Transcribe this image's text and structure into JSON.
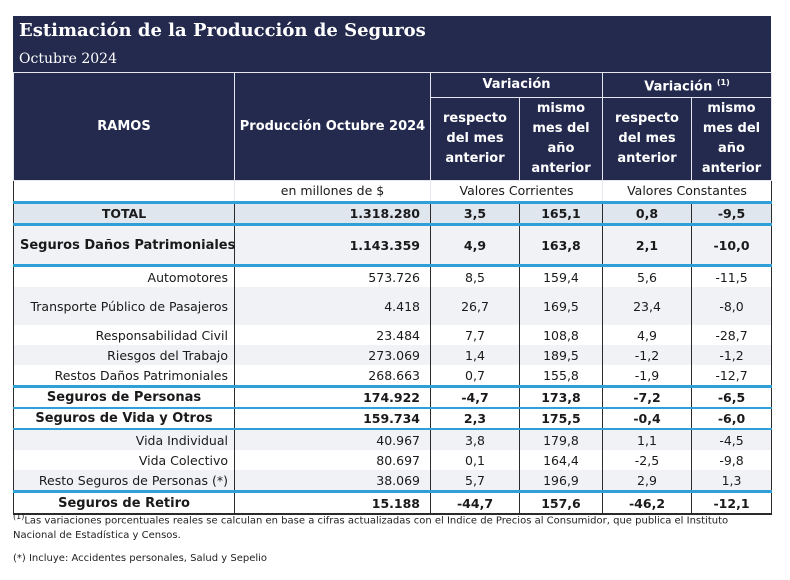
{
  "title": "Estimación de la Producción de Seguros",
  "subtitle": "Octubre 2024",
  "header": {
    "ramos": "RAMOS",
    "produccion": "Producción Octubre 2024",
    "variacion1": "Variación",
    "variacion2": "Variación",
    "variacion2_sup": "(1)",
    "resp_mes_1": "respecto del mes anterior",
    "mismo_mes_1": "mismo mes del año anterior",
    "resp_mes_2": "respecto del mes anterior",
    "mismo_mes_2": "mismo mes del año anterior",
    "unidad": "en millones de $",
    "valores_corrientes": "Valores Corrientes",
    "valores_constantes": "Valores Constantes"
  },
  "rows": [
    {
      "ramo": "TOTAL",
      "prod": "1.318.280",
      "vc_mes": "3,5",
      "vc_anio": "165,1",
      "vk_mes": "0,8",
      "vk_anio": "-9,5"
    },
    {
      "ramo": "Seguros Daños Patrimoniales",
      "prod": "1.143.359",
      "vc_mes": "4,9",
      "vc_anio": "163,8",
      "vk_mes": "2,1",
      "vk_anio": "-10,0"
    },
    {
      "ramo": "Automotores",
      "prod": "573.726",
      "vc_mes": "8,5",
      "vc_anio": "159,4",
      "vk_mes": "5,6",
      "vk_anio": "-11,5"
    },
    {
      "ramo": "Transporte Público de Pasajeros",
      "prod": "4.418",
      "vc_mes": "26,7",
      "vc_anio": "169,5",
      "vk_mes": "23,4",
      "vk_anio": "-8,0"
    },
    {
      "ramo": "Responsabilidad Civil",
      "prod": "23.484",
      "vc_mes": "7,7",
      "vc_anio": "108,8",
      "vk_mes": "4,9",
      "vk_anio": "-28,7"
    },
    {
      "ramo": "Riesgos del Trabajo",
      "prod": "273.069",
      "vc_mes": "1,4",
      "vc_anio": "189,5",
      "vk_mes": "-1,2",
      "vk_anio": "-1,2"
    },
    {
      "ramo": "Restos Daños Patrimoniales",
      "prod": "268.663",
      "vc_mes": "0,7",
      "vc_anio": "155,8",
      "vk_mes": "-1,9",
      "vk_anio": "-12,7"
    },
    {
      "ramo": "Seguros de Personas",
      "prod": "174.922",
      "vc_mes": "-4,7",
      "vc_anio": "173,8",
      "vk_mes": "-7,2",
      "vk_anio": "-6,5"
    },
    {
      "ramo": "Seguros de Vida y Otros",
      "prod": "159.734",
      "vc_mes": "2,3",
      "vc_anio": "175,5",
      "vk_mes": "-0,4",
      "vk_anio": "-6,0"
    },
    {
      "ramo": "Vida Individual",
      "prod": "40.967",
      "vc_mes": "3,8",
      "vc_anio": "179,8",
      "vk_mes": "1,1",
      "vk_anio": "-4,5"
    },
    {
      "ramo": "Vida Colectivo",
      "prod": "80.697",
      "vc_mes": "0,1",
      "vc_anio": "164,4",
      "vk_mes": "-2,5",
      "vk_anio": "-9,8"
    },
    {
      "ramo": "Resto Seguros de Personas (*)",
      "prod": "38.069",
      "vc_mes": "5,7",
      "vc_anio": "196,9",
      "vk_mes": "2,9",
      "vk_anio": "1,3"
    },
    {
      "ramo": "Seguros de Retiro",
      "prod": "15.188",
      "vc_mes": "-44,7",
      "vc_anio": "157,6",
      "vk_mes": "-46,2",
      "vk_anio": "-12,1"
    }
  ],
  "notes": {
    "note1_sup": "(1)",
    "note1": "Las variaciones porcentuales reales se calculan en base a cifras actualizadas con  el Indice de Precios al Consumidor, que publica el Instituto Nacional de Estadística y  Censos.",
    "note2": "(*) Incluye: Accidentes personales, Salud y Sepelio"
  }
}
